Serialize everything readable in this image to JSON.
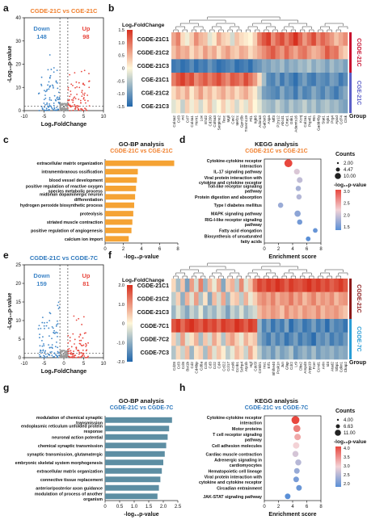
{
  "panel_letters": [
    "a",
    "b",
    "c",
    "d",
    "e",
    "f",
    "g",
    "h"
  ],
  "colors": {
    "up": "#e8473e",
    "down": "#3f86c8",
    "bar1": "#f5a334",
    "bar2": "#5d8ea3",
    "sigline": "#222222"
  },
  "chart_data": [
    {
      "type": "scatter",
      "panel": "a",
      "title": "CGDE-21C vs CGE-21C",
      "title_color": "#f07e2a",
      "xlabel": "Log₂FoldChange",
      "ylabel": "-Log₁₀p-value",
      "xlim": [
        -10,
        10
      ],
      "ylim": [
        0,
        40
      ],
      "xticks": [
        "-10",
        "-5",
        "0",
        "5",
        "10"
      ],
      "yticks": [
        "0",
        "10",
        "20",
        "30",
        "40"
      ],
      "down_label": "Down",
      "down_count": "148",
      "up_label": "Up",
      "up_count": "98"
    },
    {
      "type": "heatmap",
      "panel": "b",
      "legend_title": "Log₂FoldChange",
      "scale_ticks": [
        "1.5",
        "1.0",
        "0.5",
        "0",
        "-0.5",
        "-1.0",
        "-1.5"
      ],
      "rows": [
        "CGDE-21C1",
        "CGDE-21C2",
        "CGDE-21C3",
        "CGE-21C1",
        "CGE-21C2",
        "CGE-21C3"
      ],
      "groups": [
        {
          "name": "CGDE-21C",
          "color": "#c8102e"
        },
        {
          "name": "CGE-21C",
          "color": "#5b5fc7"
        }
      ],
      "group_title": "Group",
      "col_labels": [
        "Col4a2",
        "Ccl3",
        "Prl",
        "Ccl7",
        "Col4a1",
        "Hcrtr1",
        "Lox",
        "Ehd2",
        "Cd200",
        "Col5a3",
        "Serpine2",
        "Tesc",
        "Mgll",
        "Cav2",
        "Mef2c",
        "Gprc5b",
        "Tmem119",
        "Ftl1",
        "Itgb5",
        "Adora3",
        "Gal3st3",
        "Aspa",
        "Ntf3",
        "P2ry12",
        "Abcd1",
        "Crtac1",
        "Grik1",
        "Adamts16",
        "Kcnj",
        "Col2a1",
        "Pcp4l1",
        "Rtn",
        "Gadd45g",
        "Stat1",
        "Syk1",
        "Prg4",
        "Apod",
        "Cd74",
        "Ctsk"
      ],
      "values": [
        [
          0.6,
          0.9,
          0.2,
          -0.1,
          0.3,
          0.8,
          0.5,
          0.4,
          -0.2,
          0.1,
          0.6,
          0.3,
          0.2,
          -0.3,
          0.4,
          0.2,
          0.1,
          0.0,
          0.3,
          0.9,
          1.2,
          1.4,
          0.8,
          1.1,
          1.3,
          0.9,
          1.2,
          1.5,
          1.1,
          0.7,
          1.0,
          1.3,
          0.8,
          1.1,
          0.9,
          0.7,
          0.4,
          0.6,
          0.8
        ],
        [
          0.4,
          0.7,
          0.5,
          0.6,
          0.2,
          0.5,
          0.3,
          0.7,
          0.4,
          0.6,
          0.2,
          0.5,
          0.7,
          0.4,
          0.3,
          0.6,
          0.5,
          0.2,
          0.4,
          0.6,
          0.8,
          1.0,
          1.2,
          0.9,
          0.7,
          1.1,
          0.8,
          0.6,
          0.9,
          1.0,
          0.7,
          0.5,
          0.6,
          0.8,
          1.2,
          0.9,
          1.0,
          0.5,
          0.3
        ],
        [
          -1.3,
          -1.2,
          -1.4,
          -1.3,
          -1.1,
          -1.4,
          -1.2,
          -1.3,
          -1.0,
          -1.2,
          -1.4,
          -1.3,
          -1.2,
          -1.1,
          -1.4,
          -1.3,
          -1.2,
          -1.4,
          -1.1,
          -1.0,
          -0.8,
          -0.9,
          -0.7,
          -0.8,
          -0.6,
          -0.9,
          -0.7,
          -0.8,
          -0.6,
          -0.7,
          -0.5,
          -0.8,
          -0.6,
          -0.7,
          -0.9,
          -0.6,
          -0.8,
          -0.7,
          -0.9
        ],
        [
          0.9,
          1.2,
          1.4,
          1.1,
          1.3,
          0.8,
          1.0,
          1.2,
          0.9,
          1.1,
          1.3,
          1.0,
          0.8,
          1.2,
          1.1,
          0.9,
          1.3,
          1.0,
          0.7,
          0.2,
          -0.6,
          -1.1,
          -1.2,
          -0.9,
          -1.3,
          -1.0,
          -1.2,
          -1.4,
          -1.1,
          -0.9,
          -1.2,
          -1.3,
          -1.0,
          -1.1,
          -1.2,
          -0.9,
          -1.0,
          -1.3,
          -1.1
        ],
        [
          0.2,
          0.5,
          0.3,
          0.6,
          0.1,
          0.4,
          0.7,
          0.3,
          0.5,
          0.2,
          0.4,
          0.6,
          0.3,
          0.5,
          0.2,
          0.4,
          0.6,
          0.3,
          0.1,
          -0.4,
          -0.9,
          -1.0,
          -1.1,
          -1.2,
          -0.8,
          -1.1,
          -1.0,
          -1.3,
          -0.9,
          -1.2,
          -1.1,
          -0.8,
          -1.0,
          -1.2,
          -0.9,
          -1.1,
          -1.3,
          -1.0,
          -0.8
        ],
        [
          -0.2,
          0.1,
          -0.4,
          0.3,
          -0.1,
          0.2,
          -0.3,
          0.1,
          0.4,
          -0.2,
          0.0,
          0.3,
          -0.1,
          0.2,
          -0.3,
          0.1,
          -0.2,
          0.3,
          0.0,
          -0.2,
          -0.5,
          -0.6,
          -0.7,
          -0.4,
          -0.6,
          -0.8,
          -0.5,
          -0.7,
          -0.6,
          -0.4,
          -0.7,
          -0.5,
          -0.8,
          -0.6,
          -0.5,
          -0.7,
          -0.6,
          -0.8,
          -0.9
        ]
      ]
    },
    {
      "type": "bar",
      "panel": "c",
      "title": "GO-BP analysis",
      "subtitle": "CGDE-21C vs CGE-21C",
      "subtitle_color": "#f07e2a",
      "xlabel": "-log₁₀p-value",
      "xlim": [
        0,
        8
      ],
      "xticks": [
        "0",
        "2",
        "4",
        "6",
        "8"
      ],
      "categories": [
        "extracellular matrix organization",
        "intramembranous ossification",
        "blood vessel development",
        "positive regulation of reactive oxygen species metabolic process",
        "midbrain dopaminergic neuron differentiation",
        "hydrogen peroxide biosynthetic process",
        "proteolysis",
        "striated muscle contraction",
        "positive regulation of angiogenesis",
        "calcium ion import"
      ],
      "values": [
        7.6,
        3.6,
        3.5,
        3.4,
        3.3,
        3.2,
        3.1,
        3.0,
        2.9,
        2.6
      ]
    },
    {
      "type": "scatter",
      "panel": "d",
      "title": "KEGG analysis",
      "subtitle": "CGDE-21C vs CGE-21C",
      "subtitle_color": "#f07e2a",
      "xlabel": "Enrichment score",
      "xlim": [
        0,
        8
      ],
      "xticks": [
        "0",
        "2",
        "4",
        "6",
        "8"
      ],
      "categories": [
        "Cytokine-cytokine receptor interaction",
        "IL-17 signaling pathway",
        "Viral protein interaction with cytokine and cytokine receptor",
        "Toll-like receptor signaling pathway",
        "Protein digestion and absorption",
        "Type I diabetes mellitus",
        "MAPK signaling pathway",
        "RIG-I-like receptor signaling pathway",
        "Fatty acid elongation",
        "Biosynthesis of unsaturated fatty acids"
      ],
      "x": [
        3.4,
        4.6,
        5.0,
        4.8,
        4.9,
        2.3,
        4.7,
        5.0,
        7.2,
        6.2
      ],
      "counts": [
        10,
        4,
        4,
        3,
        3,
        3,
        5,
        3,
        2,
        2
      ],
      "logp": [
        3.8,
        2.4,
        2.2,
        2.0,
        2.1,
        1.9,
        1.8,
        1.6,
        1.5,
        1.4
      ],
      "size_legend_title": "Counts",
      "size_legend": [
        "2.00",
        "4.47",
        "10.00"
      ],
      "color_legend_title": "-log₁₀p-value",
      "color_ticks": [
        "3.0",
        "2.5",
        "2.0",
        "1.5"
      ]
    },
    {
      "type": "scatter",
      "panel": "e",
      "title": "CGDE-21C vs CGDE-7C",
      "title_color": "#2e78bd",
      "xlabel": "Log₂FoldChange",
      "ylabel": "-Log₁₀p-value",
      "xlim": [
        -10,
        10
      ],
      "ylim": [
        0,
        25
      ],
      "xticks": [
        "-10",
        "-5",
        "0",
        "5",
        "10"
      ],
      "yticks": [
        "0",
        "5",
        "10",
        "15",
        "20",
        "25"
      ],
      "down_label": "Down",
      "down_count": "159",
      "up_label": "Up",
      "up_count": "81"
    },
    {
      "type": "heatmap",
      "panel": "f",
      "legend_title": "Log₂FoldChange",
      "scale_ticks": [
        "2.0",
        "1.0",
        "0",
        "-1.0",
        "-2.0"
      ],
      "rows": [
        "CGDE-21C1",
        "CGDE-21C2",
        "CGDE-21C3",
        "CGDE-7C1",
        "CGDE-7C2",
        "CGDE-7C3"
      ],
      "groups": [
        {
          "name": "CGDE-21C",
          "color": "#8b1a1a"
        },
        {
          "name": "CGDE-7C",
          "color": "#2a9dd6"
        }
      ],
      "group_title": "Group",
      "col_labels": [
        "Cd28",
        "Ccl3",
        "Ccl8",
        "Bst1b",
        "Cd2",
        "Cd48ip",
        "Cd8a",
        "Ccl5",
        "Cd3",
        "Ccl2",
        "Cd4",
        "Ccl22",
        "Ccl17",
        "Acsl6",
        "Ccnb1",
        "Scfrp4",
        "Atp1b",
        "Hgf",
        "Cdc5l",
        "Cmklr1",
        "Ins1",
        "Erf1",
        "Bhlhe40",
        "Pcsk1n",
        "Jun",
        "Gfap",
        "Cdr2",
        "Lr9",
        "Dbx2",
        "Ampd3",
        "Arpp19",
        "Fcer",
        "Ccnd1",
        "Anln",
        "Id4",
        "Atad2",
        "Stbp1",
        "Cdkn1",
        "Ckap2"
      ],
      "values": [
        [
          0.3,
          -0.8,
          0.5,
          -1.2,
          0.9,
          -0.4,
          1.2,
          -0.9,
          0.6,
          -0.2,
          0.8,
          -1.1,
          0.4,
          0.7,
          -0.6,
          1.1,
          -0.3,
          0.5,
          1.3,
          1.8,
          1.6,
          1.9,
          1.7,
          2.0,
          1.8,
          1.5,
          1.9,
          1.7,
          1.6,
          1.8,
          2.0,
          1.7,
          1.9,
          1.6,
          1.8,
          1.5,
          1.7,
          1.9,
          1.6
        ],
        [
          -0.6,
          0.4,
          -1.0,
          0.7,
          -0.3,
          0.9,
          -0.7,
          0.2,
          -1.1,
          0.6,
          -0.4,
          0.8,
          -0.9,
          0.3,
          0.5,
          -0.6,
          0.7,
          -0.2,
          0.4,
          0.9,
          1.1,
          0.8,
          1.2,
          0.7,
          1.0,
          0.9,
          1.3,
          0.8,
          1.1,
          0.6,
          0.9,
          1.2,
          0.7,
          1.0,
          0.8,
          1.1,
          0.6,
          0.9,
          1.0
        ],
        [
          -0.9,
          -0.3,
          -0.7,
          -1.1,
          -0.5,
          -0.8,
          -0.2,
          -1.0,
          -0.6,
          -0.9,
          -0.4,
          -0.7,
          -1.2,
          -0.5,
          -0.8,
          -0.3,
          -0.9,
          -0.6,
          -0.4,
          0.6,
          0.9,
          0.7,
          1.0,
          0.8,
          0.5,
          1.1,
          0.7,
          0.9,
          0.6,
          1.0,
          0.8,
          0.7,
          1.1,
          0.6,
          0.9,
          0.8,
          1.0,
          0.7,
          0.5
        ],
        [
          1.6,
          1.9,
          1.4,
          1.8,
          2.0,
          1.7,
          1.5,
          1.9,
          1.6,
          1.8,
          1.4,
          1.9,
          1.7,
          1.6,
          2.0,
          1.8,
          1.5,
          1.9,
          1.7,
          -0.9,
          -1.6,
          -1.2,
          -1.8,
          -1.4,
          -1.7,
          -1.1,
          -1.9,
          -1.5,
          -1.3,
          -1.8,
          -1.6,
          -1.2,
          -1.7,
          -1.4,
          -1.9,
          -1.3,
          -1.6,
          -1.5,
          -1.8
        ],
        [
          0.4,
          -0.6,
          0.9,
          -0.3,
          0.2,
          0.7,
          -0.8,
          0.5,
          -0.4,
          0.8,
          0.3,
          -0.7,
          0.6,
          0.9,
          0.4,
          -0.2,
          0.7,
          0.3,
          0.5,
          -1.0,
          -1.4,
          -1.7,
          -1.2,
          -1.6,
          -1.3,
          -1.8,
          -1.5,
          -1.2,
          -1.7,
          -1.4,
          -1.6,
          -1.9,
          -1.3,
          -1.5,
          -1.2,
          -1.7,
          -1.4,
          -1.6,
          -1.3
        ],
        [
          -0.7,
          0.3,
          -0.5,
          0.6,
          -0.9,
          0.2,
          0.4,
          -0.8,
          0.7,
          -0.3,
          0.5,
          0.1,
          -0.6,
          -0.2,
          0.6,
          0.3,
          -0.5,
          0.8,
          0.2,
          -0.6,
          -1.1,
          -0.9,
          -1.3,
          -0.8,
          -1.2,
          -1.0,
          -0.7,
          -1.4,
          -1.1,
          -0.9,
          -1.2,
          -0.8,
          -1.3,
          -1.0,
          -1.1,
          -0.9,
          -1.2,
          -1.0,
          -1.1
        ]
      ]
    },
    {
      "type": "bar",
      "panel": "g",
      "title": "GO-BP analysis",
      "subtitle": "CGDE-21C vs CGDE-7C",
      "subtitle_color": "#2e78bd",
      "xlabel": "-log₁₀p-value",
      "xlim": [
        0,
        2.5
      ],
      "xticks": [
        "0",
        "0.5",
        "1.0",
        "1.5",
        "2.0",
        "2.5"
      ],
      "categories": [
        "modulation of chemical synaptic transmission",
        "endoplasmic reticulum unfolded protein response",
        "neuronal action potential",
        "chemical synaptic transmission",
        "synaptic transmission, glutamatergic",
        "embryonic skeletal system morphogenesis",
        "extracellular matrix organization",
        "connective tissue replacement",
        "anterior/posterior axon guidance",
        "modulation of process of another organism"
      ],
      "values": [
        2.3,
        2.2,
        2.15,
        2.1,
        2.05,
        2.0,
        1.95,
        1.9,
        1.85,
        1.8
      ]
    },
    {
      "type": "scatter",
      "panel": "h",
      "title": "KEGG analysis",
      "subtitle": "CGDE-21C vs CGDE-7C",
      "subtitle_color": "#2e78bd",
      "xlabel": "Enrichment score",
      "xlim": [
        0,
        8
      ],
      "xticks": [
        "0",
        "2",
        "4",
        "6",
        "8"
      ],
      "categories": [
        "Cytokine-cytokine receptor interaction",
        "Motor proteins",
        "T cell receptor signaling pathway",
        "Cell adhesion molecules",
        "Cardiac muscle contraction",
        "Adrenergic signaling in cardiomyocytes",
        "Hematopoietic cell lineage",
        "Viral protein interaction with cytokine and cytokine receptor",
        "Circadian entrainment",
        "JAK-STAT signaling pathway"
      ],
      "x": [
        4.4,
        4.6,
        4.7,
        4.5,
        4.4,
        4.8,
        4.6,
        4.5,
        4.9,
        3.3
      ],
      "counts": [
        11,
        8,
        6,
        6,
        5,
        5,
        4,
        4,
        4,
        4
      ],
      "logp": [
        4.0,
        3.6,
        3.3,
        3.0,
        2.8,
        2.6,
        2.4,
        2.2,
        2.1,
        2.0
      ],
      "size_legend_title": "Counts",
      "size_legend": [
        "4.00",
        "6.63",
        "11.00"
      ],
      "color_legend_title": "-log₁₀p-value",
      "color_ticks": [
        "4.0",
        "3.5",
        "3.0",
        "2.5",
        "2.0"
      ]
    }
  ]
}
